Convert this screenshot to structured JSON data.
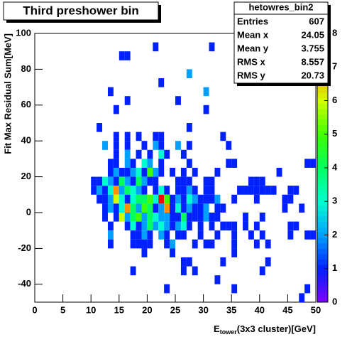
{
  "chart_data": {
    "type": "heatmap",
    "title": "Third preshower bin",
    "xlabel": "E",
    "xlabel_sub": "tower",
    "xlabel_rest": "(3x3 cluster)[GeV]",
    "ylabel": "Fit Max Residual Sum[MeV]",
    "xlim": [
      0,
      50
    ],
    "ylim": [
      -50,
      100
    ],
    "zlim": [
      0,
      8
    ],
    "xticks": [
      0,
      5,
      10,
      15,
      20,
      25,
      30,
      35,
      40,
      45,
      50
    ],
    "yticks": [
      -40,
      -20,
      0,
      20,
      40,
      60,
      80,
      100
    ],
    "zticks": [
      0,
      1,
      2,
      3,
      4,
      5,
      6,
      7,
      8
    ],
    "xbin_width": 1,
    "ybin_width": 5,
    "colorscale": [
      "#8000ff",
      "#0020ff",
      "#00a0ff",
      "#00ffd0",
      "#00ff60",
      "#40ff00",
      "#d0ff00",
      "#ff9000",
      "#ff0000"
    ],
    "stats": {
      "name": "hetowres_bin2",
      "rows": [
        {
          "label": "Entries",
          "value": 607
        },
        {
          "label": "Mean x",
          "value": 24.05
        },
        {
          "label": "Mean y",
          "value": 3.755
        },
        {
          "label": "RMS x",
          "value": 8.557
        },
        {
          "label": "RMS y",
          "value": 20.73
        }
      ]
    },
    "cells": [
      [
        21,
        90,
        1
      ],
      [
        31,
        90,
        1
      ],
      [
        15,
        85,
        1
      ],
      [
        16,
        85,
        1
      ],
      [
        27,
        75,
        2
      ],
      [
        22,
        70,
        1
      ],
      [
        13,
        65,
        1
      ],
      [
        30,
        65,
        2
      ],
      [
        16,
        60,
        1
      ],
      [
        25,
        60,
        1
      ],
      [
        14,
        55,
        1
      ],
      [
        30,
        55,
        1
      ],
      [
        11,
        45,
        1
      ],
      [
        27,
        45,
        1
      ],
      [
        14,
        40,
        1
      ],
      [
        16,
        40,
        1
      ],
      [
        18,
        40,
        1
      ],
      [
        21,
        40,
        1
      ],
      [
        22,
        40,
        1
      ],
      [
        33,
        40,
        1
      ],
      [
        12,
        35,
        2
      ],
      [
        14,
        35,
        1
      ],
      [
        16,
        35,
        1
      ],
      [
        19,
        35,
        1
      ],
      [
        21,
        35,
        2
      ],
      [
        22,
        35,
        1
      ],
      [
        25,
        35,
        2
      ],
      [
        27,
        35,
        1
      ],
      [
        34,
        35,
        1
      ],
      [
        14,
        30,
        1
      ],
      [
        16,
        30,
        2
      ],
      [
        18,
        30,
        1
      ],
      [
        20,
        30,
        1
      ],
      [
        22,
        30,
        3
      ],
      [
        23,
        30,
        1
      ],
      [
        26,
        30,
        1
      ],
      [
        13,
        25,
        1
      ],
      [
        14,
        25,
        1
      ],
      [
        16,
        25,
        2
      ],
      [
        17,
        25,
        1
      ],
      [
        19,
        25,
        3
      ],
      [
        20,
        25,
        2
      ],
      [
        22,
        25,
        1
      ],
      [
        27,
        25,
        1
      ],
      [
        34,
        25,
        1
      ],
      [
        35,
        25,
        1
      ],
      [
        48,
        25,
        1
      ],
      [
        49,
        25,
        1
      ],
      [
        13,
        20,
        1
      ],
      [
        14,
        20,
        2
      ],
      [
        15,
        20,
        1
      ],
      [
        16,
        20,
        1
      ],
      [
        17,
        20,
        2
      ],
      [
        18,
        20,
        3
      ],
      [
        19,
        20,
        1
      ],
      [
        20,
        20,
        5
      ],
      [
        21,
        20,
        2
      ],
      [
        22,
        20,
        1
      ],
      [
        24,
        20,
        1
      ],
      [
        26,
        20,
        1
      ],
      [
        28,
        20,
        1
      ],
      [
        32,
        20,
        1
      ],
      [
        43,
        20,
        1
      ],
      [
        10,
        15,
        1
      ],
      [
        11,
        15,
        1
      ],
      [
        12,
        15,
        3
      ],
      [
        13,
        15,
        2
      ],
      [
        14,
        15,
        1
      ],
      [
        15,
        15,
        4
      ],
      [
        16,
        15,
        2
      ],
      [
        17,
        15,
        1
      ],
      [
        18,
        15,
        4
      ],
      [
        19,
        15,
        2
      ],
      [
        20,
        15,
        1
      ],
      [
        21,
        15,
        1
      ],
      [
        25,
        15,
        1
      ],
      [
        26,
        15,
        1
      ],
      [
        27,
        15,
        1
      ],
      [
        30,
        15,
        1
      ],
      [
        31,
        15,
        1
      ],
      [
        38,
        15,
        1
      ],
      [
        39,
        15,
        1
      ],
      [
        40,
        15,
        1
      ],
      [
        10,
        10,
        1
      ],
      [
        11,
        10,
        2
      ],
      [
        12,
        10,
        1
      ],
      [
        13,
        10,
        3
      ],
      [
        14,
        10,
        7
      ],
      [
        15,
        10,
        2
      ],
      [
        16,
        10,
        4
      ],
      [
        17,
        10,
        3
      ],
      [
        18,
        10,
        2
      ],
      [
        19,
        10,
        1
      ],
      [
        21,
        10,
        1
      ],
      [
        22,
        10,
        3
      ],
      [
        23,
        10,
        1
      ],
      [
        25,
        10,
        1
      ],
      [
        26,
        10,
        1
      ],
      [
        27,
        10,
        2
      ],
      [
        28,
        10,
        1
      ],
      [
        30,
        10,
        1
      ],
      [
        31,
        10,
        1
      ],
      [
        36,
        10,
        1
      ],
      [
        37,
        10,
        1
      ],
      [
        38,
        10,
        1
      ],
      [
        39,
        10,
        1
      ],
      [
        40,
        10,
        1
      ],
      [
        41,
        10,
        1
      ],
      [
        42,
        10,
        1
      ],
      [
        45,
        10,
        1
      ],
      [
        46,
        10,
        1
      ],
      [
        11,
        5,
        1
      ],
      [
        12,
        5,
        1
      ],
      [
        13,
        5,
        2
      ],
      [
        14,
        5,
        6
      ],
      [
        15,
        5,
        3
      ],
      [
        16,
        5,
        1
      ],
      [
        17,
        5,
        3
      ],
      [
        18,
        5,
        4
      ],
      [
        19,
        5,
        4
      ],
      [
        20,
        5,
        5
      ],
      [
        21,
        5,
        3
      ],
      [
        22,
        5,
        8
      ],
      [
        23,
        5,
        5
      ],
      [
        24,
        5,
        1
      ],
      [
        25,
        5,
        2
      ],
      [
        26,
        5,
        1
      ],
      [
        27,
        5,
        3
      ],
      [
        28,
        5,
        2
      ],
      [
        29,
        5,
        1
      ],
      [
        30,
        5,
        1
      ],
      [
        31,
        5,
        1
      ],
      [
        32,
        5,
        2
      ],
      [
        35,
        5,
        1
      ],
      [
        39,
        5,
        1
      ],
      [
        44,
        5,
        1
      ],
      [
        45,
        5,
        1
      ],
      [
        12,
        0,
        1
      ],
      [
        13,
        0,
        2
      ],
      [
        14,
        0,
        1
      ],
      [
        15,
        0,
        3
      ],
      [
        16,
        0,
        7
      ],
      [
        17,
        0,
        4
      ],
      [
        18,
        0,
        2
      ],
      [
        19,
        0,
        5
      ],
      [
        20,
        0,
        4
      ],
      [
        21,
        0,
        1
      ],
      [
        22,
        0,
        2
      ],
      [
        23,
        0,
        7
      ],
      [
        24,
        0,
        1
      ],
      [
        25,
        0,
        3
      ],
      [
        26,
        0,
        1
      ],
      [
        27,
        0,
        2
      ],
      [
        28,
        0,
        1
      ],
      [
        29,
        0,
        1
      ],
      [
        30,
        0,
        2
      ],
      [
        32,
        0,
        1
      ],
      [
        33,
        0,
        1
      ],
      [
        44,
        0,
        1
      ],
      [
        47,
        0,
        1
      ],
      [
        12,
        -5,
        1
      ],
      [
        14,
        -5,
        1
      ],
      [
        15,
        -5,
        6
      ],
      [
        16,
        -5,
        2
      ],
      [
        17,
        -5,
        4
      ],
      [
        18,
        -5,
        5
      ],
      [
        19,
        -5,
        2
      ],
      [
        20,
        -5,
        4
      ],
      [
        21,
        -5,
        3
      ],
      [
        22,
        -5,
        2
      ],
      [
        23,
        -5,
        2
      ],
      [
        24,
        -5,
        1
      ],
      [
        25,
        -5,
        1
      ],
      [
        26,
        -5,
        4
      ],
      [
        27,
        -5,
        1
      ],
      [
        28,
        -5,
        1
      ],
      [
        29,
        -5,
        1
      ],
      [
        30,
        -5,
        2
      ],
      [
        31,
        -5,
        1
      ],
      [
        32,
        -5,
        1
      ],
      [
        37,
        -5,
        1
      ],
      [
        40,
        -5,
        1
      ],
      [
        13,
        -10,
        1
      ],
      [
        16,
        -10,
        1
      ],
      [
        17,
        -10,
        3
      ],
      [
        18,
        -10,
        1
      ],
      [
        19,
        -10,
        2
      ],
      [
        20,
        -10,
        4
      ],
      [
        21,
        -10,
        2
      ],
      [
        22,
        -10,
        3
      ],
      [
        23,
        -10,
        2
      ],
      [
        24,
        -10,
        1
      ],
      [
        25,
        -10,
        2
      ],
      [
        26,
        -10,
        3
      ],
      [
        27,
        -10,
        1
      ],
      [
        29,
        -10,
        1
      ],
      [
        31,
        -10,
        1
      ],
      [
        33,
        -10,
        1
      ],
      [
        34,
        -10,
        1
      ],
      [
        35,
        -10,
        1
      ],
      [
        37,
        -10,
        1
      ],
      [
        39,
        -10,
        1
      ],
      [
        45,
        -10,
        1
      ],
      [
        46,
        -10,
        1
      ],
      [
        13,
        -15,
        2
      ],
      [
        17,
        -15,
        1
      ],
      [
        18,
        -15,
        1
      ],
      [
        19,
        -15,
        2
      ],
      [
        20,
        -15,
        1
      ],
      [
        22,
        -15,
        2
      ],
      [
        23,
        -15,
        1
      ],
      [
        25,
        -15,
        1
      ],
      [
        26,
        -15,
        1
      ],
      [
        29,
        -15,
        1
      ],
      [
        32,
        -15,
        1
      ],
      [
        35,
        -15,
        1
      ],
      [
        38,
        -15,
        1
      ],
      [
        40,
        -15,
        1
      ],
      [
        45,
        -15,
        1
      ],
      [
        48,
        -15,
        1
      ],
      [
        49,
        -15,
        1
      ],
      [
        13,
        -20,
        1
      ],
      [
        17,
        -20,
        1
      ],
      [
        18,
        -20,
        1
      ],
      [
        19,
        -20,
        1
      ],
      [
        20,
        -20,
        1
      ],
      [
        23,
        -20,
        1
      ],
      [
        24,
        -20,
        2
      ],
      [
        28,
        -20,
        1
      ],
      [
        30,
        -20,
        1
      ],
      [
        31,
        -20,
        1
      ],
      [
        35,
        -20,
        1
      ],
      [
        39,
        -20,
        1
      ],
      [
        41,
        -20,
        1
      ],
      [
        19,
        -25,
        1
      ],
      [
        24,
        -25,
        1
      ],
      [
        35,
        -25,
        1
      ],
      [
        26,
        -30,
        1
      ],
      [
        27,
        -30,
        1
      ],
      [
        33,
        -30,
        1
      ],
      [
        41,
        -30,
        1
      ],
      [
        17,
        -35,
        1
      ],
      [
        26,
        -35,
        1
      ],
      [
        28,
        -35,
        1
      ],
      [
        40,
        -35,
        1
      ],
      [
        32,
        -40,
        1
      ],
      [
        23,
        -45,
        1
      ],
      [
        35,
        -45,
        1
      ],
      [
        48,
        -45,
        1
      ],
      [
        47,
        -50,
        1
      ]
    ]
  }
}
